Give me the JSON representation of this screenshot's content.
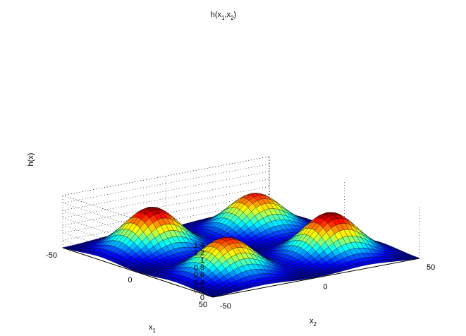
{
  "chart_data": {
    "type": "surface",
    "title": "h(x1,x2)",
    "title_parts": {
      "main": "h(x",
      "sub1": "1",
      "sep": ",x",
      "sub2": "2",
      "close": ")"
    },
    "xlabel": {
      "main": "x",
      "sub": "1"
    },
    "ylabel": {
      "main": "x",
      "sub": "2"
    },
    "zlabel": "h(x)",
    "x1_range": [
      -50,
      50
    ],
    "x2_range": [
      -50,
      50
    ],
    "z_range": [
      0,
      1.4
    ],
    "x1_ticks": [
      "-50",
      "0",
      "50"
    ],
    "x2_ticks": [
      "-50",
      "0",
      "50"
    ],
    "z_ticks": [
      "0",
      "0.2",
      "0.4",
      "0.6",
      "0.8",
      "1",
      "1.2",
      "1.4"
    ],
    "grid": true,
    "colormap": "jet",
    "peaks": [
      {
        "x1": -25,
        "x2": -25,
        "height": 1.15
      },
      {
        "x1": -25,
        "x2": 25,
        "height": 1.0
      },
      {
        "x1": 25,
        "x2": -25,
        "height": 1.0
      },
      {
        "x1": 25,
        "x2": 25,
        "height": 1.15
      }
    ]
  }
}
